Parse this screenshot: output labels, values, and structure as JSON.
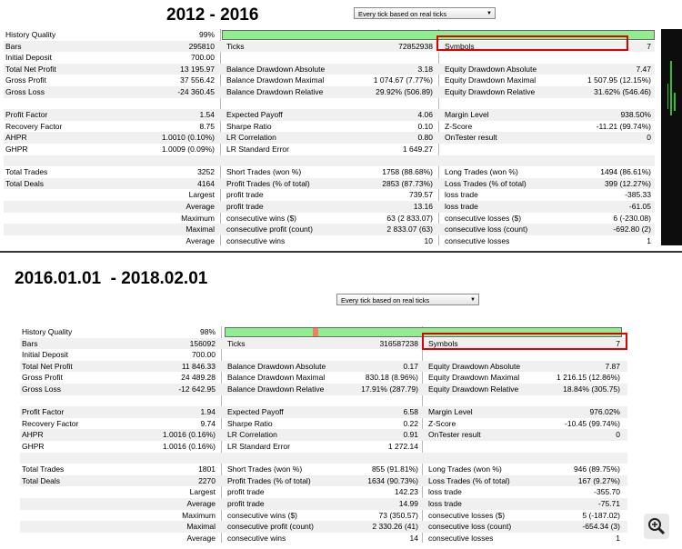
{
  "panels": [
    {
      "title": "2012 - 2016",
      "dropdown": "Every tick based on real ticks",
      "history_quality": {
        "label": "History Quality",
        "value": "99%",
        "fill": 1.0
      },
      "bars_row": {
        "label": "Bars",
        "value": "295810",
        "ticks_label": "Ticks",
        "ticks_value": "72852938",
        "symbols_label": "Symbols",
        "symbols_value": "7"
      },
      "rows": [
        [
          "Initial Deposit",
          "700.00",
          "",
          "",
          "",
          ""
        ],
        [
          "Total Net Profit",
          "13 195.97",
          "Balance Drawdown Absolute",
          "3.18",
          "Equity Drawdown Absolute",
          "7.47"
        ],
        [
          "Gross Profit",
          "37 556.42",
          "Balance Drawdown Maximal",
          "1 074.67 (7.77%)",
          "Equity Drawdown Maximal",
          "1 507.95 (12.15%)"
        ],
        [
          "Gross Loss",
          "-24 360.45",
          "Balance Drawdown Relative",
          "29.92% (506.89)",
          "Equity Drawdown Relative",
          "31.62% (546.46)"
        ],
        [
          "",
          "",
          "",
          "",
          "",
          ""
        ],
        [
          "Profit Factor",
          "1.54",
          "Expected Payoff",
          "4.06",
          "Margin Level",
          "938.50%"
        ],
        [
          "Recovery Factor",
          "8.75",
          "Sharpe Ratio",
          "0.10",
          "Z-Score",
          "-11.21 (99.74%)"
        ],
        [
          "AHPR",
          "1.0010 (0.10%)",
          "LR Correlation",
          "0.80",
          "OnTester result",
          "0"
        ],
        [
          "GHPR",
          "1.0009 (0.09%)",
          "LR Standard Error",
          "1 649.27",
          "",
          ""
        ],
        [
          "",
          "",
          "",
          "",
          "",
          ""
        ],
        [
          "Total Trades",
          "3252",
          "Short Trades (won %)",
          "1758 (88.68%)",
          "Long Trades (won %)",
          "1494 (86.61%)"
        ],
        [
          "Total Deals",
          "4164",
          "Profit Trades (% of total)",
          "2853 (87.73%)",
          "Loss Trades (% of total)",
          "399 (12.27%)"
        ],
        [
          "",
          "Largest",
          "profit trade",
          "739.57",
          "loss trade",
          "-385.33"
        ],
        [
          "",
          "Average",
          "profit trade",
          "13.16",
          "loss trade",
          "-61.05"
        ],
        [
          "",
          "Maximum",
          "consecutive wins ($)",
          "63 (2 833.07)",
          "consecutive losses ($)",
          "6 (-230.08)"
        ],
        [
          "",
          "Maximal",
          "consecutive profit (count)",
          "2 833.07 (63)",
          "consecutive loss (count)",
          "-692.80 (2)"
        ],
        [
          "",
          "Average",
          "consecutive wins",
          "10",
          "consecutive losses",
          "1"
        ]
      ]
    },
    {
      "title": "2016.01.01  - 2018.02.01",
      "dropdown": "Every tick based on real ticks",
      "history_quality": {
        "label": "History Quality",
        "value": "98%",
        "fill": 0.98
      },
      "bars_row": {
        "label": "Bars",
        "value": "156092",
        "ticks_label": "Ticks",
        "ticks_value": "316587238",
        "symbols_label": "Symbols",
        "symbols_value": "7"
      },
      "rows": [
        [
          "Initial Deposit",
          "700.00",
          "",
          "",
          "",
          ""
        ],
        [
          "Total Net Profit",
          "11 846.33",
          "Balance Drawdown Absolute",
          "0.17",
          "Equity Drawdown Absolute",
          "7.87"
        ],
        [
          "Gross Profit",
          "24 489.28",
          "Balance Drawdown Maximal",
          "830.18 (8.96%)",
          "Equity Drawdown Maximal",
          "1 216.15 (12.86%)"
        ],
        [
          "Gross Loss",
          "-12 642.95",
          "Balance Drawdown Relative",
          "17.91% (287.79)",
          "Equity Drawdown Relative",
          "18.84% (305.75)"
        ],
        [
          "",
          "",
          "",
          "",
          "",
          ""
        ],
        [
          "Profit Factor",
          "1.94",
          "Expected Payoff",
          "6.58",
          "Margin Level",
          "976.02%"
        ],
        [
          "Recovery Factor",
          "9.74",
          "Sharpe Ratio",
          "0.22",
          "Z-Score",
          "-10.45 (99.74%)"
        ],
        [
          "AHPR",
          "1.0016 (0.16%)",
          "LR Correlation",
          "0.91",
          "OnTester result",
          "0"
        ],
        [
          "GHPR",
          "1.0016 (0.16%)",
          "LR Standard Error",
          "1 272.14",
          "",
          ""
        ],
        [
          "",
          "",
          "",
          "",
          "",
          ""
        ],
        [
          "Total Trades",
          "1801",
          "Short Trades (won %)",
          "855 (91.81%)",
          "Long Trades (won %)",
          "946 (89.75%)"
        ],
        [
          "Total Deals",
          "2270",
          "Profit Trades (% of total)",
          "1634 (90.73%)",
          "Loss Trades (% of total)",
          "167 (9.27%)"
        ],
        [
          "",
          "Largest",
          "profit trade",
          "142.23",
          "loss trade",
          "-355.70"
        ],
        [
          "",
          "Average",
          "profit trade",
          "14.99",
          "loss trade",
          "-75.71"
        ],
        [
          "",
          "Maximum",
          "consecutive wins ($)",
          "73 (350.57)",
          "consecutive losses ($)",
          "5 (-187.02)"
        ],
        [
          "",
          "Maximal",
          "consecutive profit (count)",
          "2 330.26 (41)",
          "consecutive loss (count)",
          "-654.34 (3)"
        ],
        [
          "",
          "Average",
          "consecutive wins",
          "14",
          "consecutive losses",
          "1"
        ]
      ]
    }
  ],
  "colors": {
    "quality_bar": "#90ee90",
    "highlight_box": "#e00000",
    "quality_marker": "#f08060"
  },
  "icons": {
    "zoom": "zoom-in-icon"
  }
}
